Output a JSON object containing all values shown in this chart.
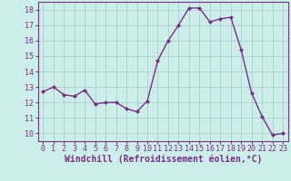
{
  "x": [
    0,
    1,
    2,
    3,
    4,
    5,
    6,
    7,
    8,
    9,
    10,
    11,
    12,
    13,
    14,
    15,
    16,
    17,
    18,
    19,
    20,
    21,
    22,
    23
  ],
  "y": [
    12.7,
    13.0,
    12.5,
    12.4,
    12.8,
    11.9,
    12.0,
    12.0,
    11.6,
    11.4,
    12.1,
    14.7,
    16.0,
    17.0,
    18.1,
    18.1,
    17.2,
    17.4,
    17.5,
    15.4,
    12.6,
    11.1,
    9.9,
    10.0
  ],
  "line_color": "#7b2d8b",
  "marker": "D",
  "marker_size": 2.0,
  "bg_color": "#cceee8",
  "grid_color": "#aacfcf",
  "xlabel": "Windchill (Refroidissement éolien,°C)",
  "ylim": [
    9.5,
    18.5
  ],
  "xlim": [
    -0.5,
    23.5
  ],
  "yticks": [
    10,
    11,
    12,
    13,
    14,
    15,
    16,
    17,
    18
  ],
  "xticks": [
    0,
    1,
    2,
    3,
    4,
    5,
    6,
    7,
    8,
    9,
    10,
    11,
    12,
    13,
    14,
    15,
    16,
    17,
    18,
    19,
    20,
    21,
    22,
    23
  ],
  "tick_fontsize": 6.0,
  "xlabel_fontsize": 7.0,
  "linewidth": 1.0,
  "spine_color": "#7b2d8b",
  "axis_bg_color": "#cceee8"
}
